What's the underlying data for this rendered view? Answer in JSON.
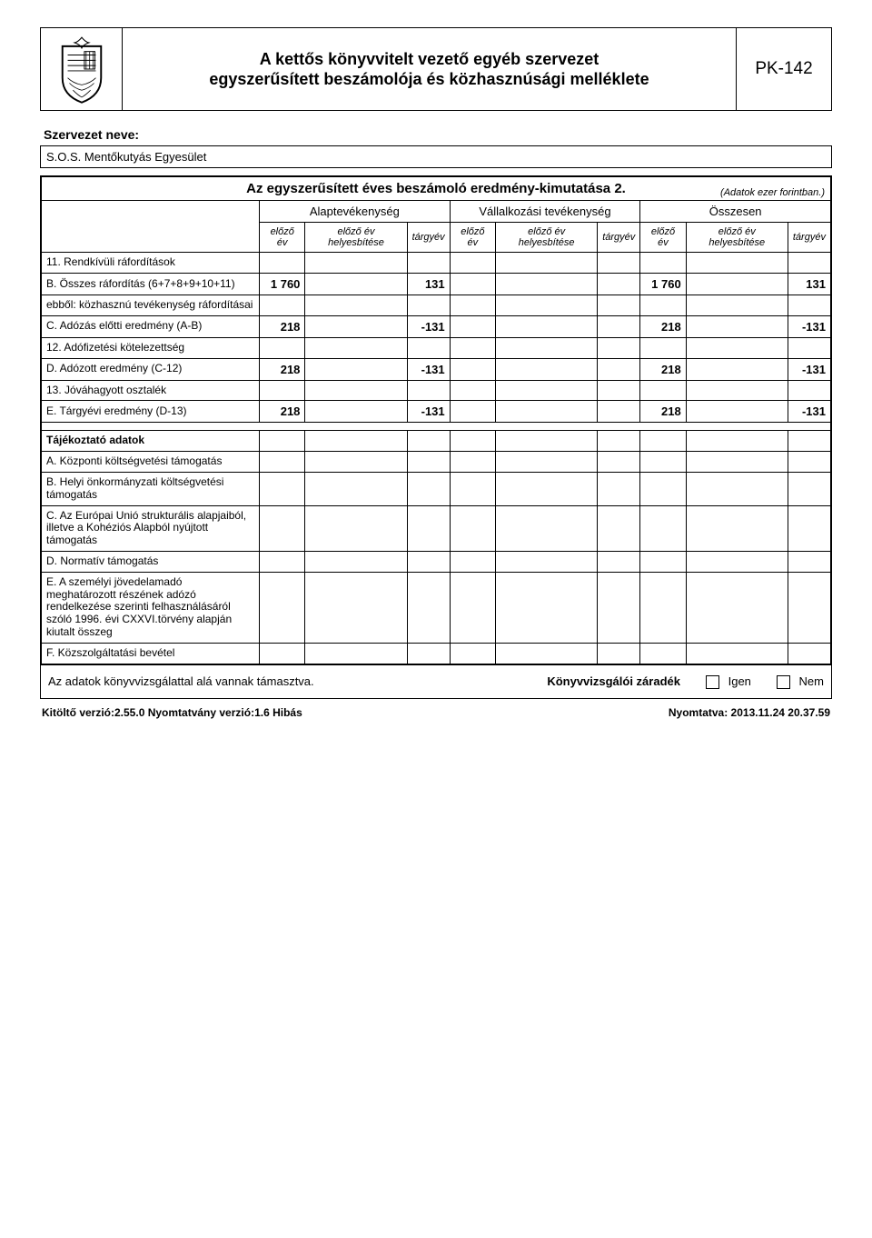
{
  "header": {
    "title_line1": "A kettős könyvvitelt vezető egyéb szervezet",
    "title_line2": "egyszerűsített beszámolója és közhasznúsági melléklete",
    "form_code": "PK-142"
  },
  "org_label": "Szervezet neve:",
  "org_name": "S.O.S. Mentőkutyás Egyesület",
  "table_title": "Az egyszerűsített éves beszámoló eredmény-kimutatása 2.",
  "table_note": "(Adatok ezer forintban.)",
  "groups": {
    "g1": "Alaptevékenység",
    "g2": "Vállalkozási tevékenység",
    "g3": "Összesen"
  },
  "sub": {
    "c1": "előző év",
    "c2": "előző év helyesbítése",
    "c3": "tárgyév"
  },
  "rows": [
    {
      "label": "11. Rendkívüli ráfordítások",
      "vals": [
        "",
        "",
        "",
        "",
        "",
        "",
        "",
        "",
        ""
      ]
    },
    {
      "label": "B. Összes ráfordítás (6+7+8+9+10+11)",
      "vals": [
        "1 760",
        "",
        "131",
        "",
        "",
        "",
        "1 760",
        "",
        "131"
      ]
    },
    {
      "label": "ebből: közhasznú tevékenység ráfordításai",
      "vals": [
        "",
        "",
        "",
        "",
        "",
        "",
        "",
        "",
        ""
      ]
    },
    {
      "label": "C. Adózás előtti eredmény (A-B)",
      "vals": [
        "218",
        "",
        "-131",
        "",
        "",
        "",
        "218",
        "",
        "-131"
      ]
    },
    {
      "label": "12. Adófizetési kötelezettség",
      "vals": [
        "",
        "",
        "",
        "",
        "",
        "",
        "",
        "",
        ""
      ]
    },
    {
      "label": "D. Adózott eredmény (C-12)",
      "vals": [
        "218",
        "",
        "-131",
        "",
        "",
        "",
        "218",
        "",
        "-131"
      ]
    },
    {
      "label": "13. Jóváhagyott osztalék",
      "vals": [
        "",
        "",
        "",
        "",
        "",
        "",
        "",
        "",
        ""
      ]
    },
    {
      "label": "E. Tárgyévi eredmény (D-13)",
      "vals": [
        "218",
        "",
        "-131",
        "",
        "",
        "",
        "218",
        "",
        "-131"
      ]
    }
  ],
  "section2_label": "Tájékoztató adatok",
  "rows2": [
    {
      "label": "A. Központi költségvetési támogatás",
      "vals": [
        "",
        "",
        "",
        "",
        "",
        "",
        "",
        "",
        ""
      ]
    },
    {
      "label": "B. Helyi önkormányzati költségvetési támogatás",
      "vals": [
        "",
        "",
        "",
        "",
        "",
        "",
        "",
        "",
        ""
      ]
    },
    {
      "label": "C. Az Európai Unió strukturális alapjaiból, illetve a Kohéziós Alapból nyújtott támogatás",
      "vals": [
        "",
        "",
        "",
        "",
        "",
        "",
        "",
        "",
        ""
      ]
    },
    {
      "label": "D. Normatív támogatás",
      "vals": [
        "",
        "",
        "",
        "",
        "",
        "",
        "",
        "",
        ""
      ]
    },
    {
      "label": "E. A személyi jövedelamadó meghatározott részének adózó rendelkezése szerinti felhasználásáról szóló 1996. évi CXXVI.törvény alapján kiutalt összeg",
      "vals": [
        "",
        "",
        "",
        "",
        "",
        "",
        "",
        "",
        ""
      ]
    },
    {
      "label": "F. Közszolgáltatási bevétel",
      "vals": [
        "",
        "",
        "",
        "",
        "",
        "",
        "",
        "",
        ""
      ]
    }
  ],
  "audit": {
    "text": "Az adatok könyvvizsgálattal alá vannak támasztva.",
    "heading": "Könyvvizsgálói záradék",
    "yes": "Igen",
    "no": "Nem"
  },
  "footer": {
    "left": "Kitöltő verzió:2.55.0  Nyomtatvány verzió:1.6  Hibás",
    "right": "Nyomtatva: 2013.11.24 20.37.59"
  },
  "colors": {
    "border": "#000000",
    "text": "#000000",
    "bg": "#ffffff"
  }
}
